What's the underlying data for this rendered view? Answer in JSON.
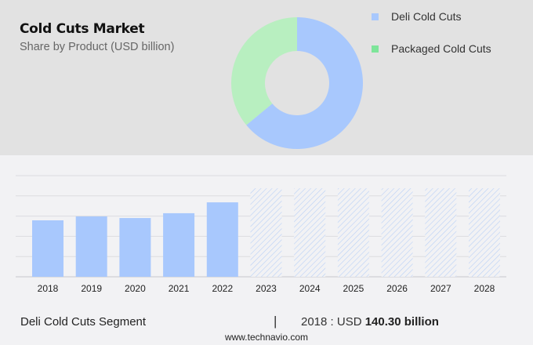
{
  "header": {
    "title": "Cold Cuts Market",
    "subtitle": "Share by Product (USD billion)"
  },
  "legend": [
    {
      "label": "Deli Cold Cuts",
      "color": "#a8c8fd"
    },
    {
      "label": "Packaged Cold Cuts",
      "color": "#7ee59a"
    }
  ],
  "footer": {
    "segment": "Deli Cold Cuts Segment",
    "separator": "|",
    "value_prefix": "2018 : USD ",
    "value": "140.30 billion",
    "website": "www.technavio.com"
  },
  "chart_data": [
    {
      "type": "pie",
      "title": "Cold Cuts Market - Share by Product (USD billion)",
      "donut": true,
      "labels": [
        "Deli Cold Cuts",
        "Packaged Cold Cuts"
      ],
      "values": [
        64,
        36
      ],
      "colors": [
        "#a8c8fd",
        "#b8efc0"
      ],
      "legend_position": "right"
    },
    {
      "type": "bar",
      "title": "Deli Cold Cuts Segment",
      "categories": [
        "2018",
        "2019",
        "2020",
        "2021",
        "2022",
        "2023",
        "2024",
        "2025",
        "2026",
        "2027",
        "2028"
      ],
      "values": [
        140.3,
        150,
        146,
        158,
        185,
        null,
        null,
        null,
        null,
        null,
        null
      ],
      "forecast": [
        false,
        false,
        false,
        false,
        false,
        true,
        true,
        true,
        true,
        true,
        true
      ],
      "forecast_placeholder_height": 220,
      "xlabel": "",
      "ylabel": "",
      "ylim": [
        0,
        250
      ],
      "grid": true,
      "annotation": "2018 : USD 140.30 billion"
    }
  ]
}
